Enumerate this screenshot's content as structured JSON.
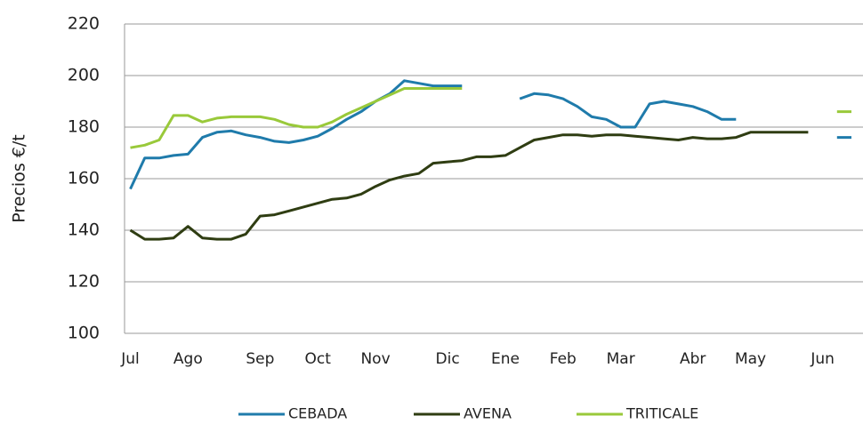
{
  "chart_data": {
    "type": "line",
    "y_label": "Precios €/t",
    "x": [
      0,
      1,
      2,
      3,
      4,
      5,
      6,
      7,
      8,
      9,
      10,
      11,
      12,
      13,
      14,
      15,
      16,
      17,
      18,
      19,
      20,
      21,
      22,
      23,
      24,
      25,
      26,
      27,
      28,
      29,
      30,
      31,
      32,
      33,
      34,
      35,
      36,
      37,
      38,
      39,
      40,
      41,
      42,
      43,
      44,
      45,
      46,
      47,
      48,
      49,
      50
    ],
    "series": [
      {
        "name": "CEBADA",
        "color": "#1f7bab",
        "values": [
          156,
          168,
          168,
          169,
          169.5,
          176,
          178,
          178.5,
          177,
          176,
          174.5,
          174,
          175,
          176.5,
          179.5,
          183,
          186,
          190,
          193,
          198,
          197,
          196,
          196,
          196,
          null,
          null,
          null,
          191,
          193,
          192.5,
          191,
          188,
          184,
          183,
          180,
          180,
          189,
          190,
          189,
          188,
          186,
          183,
          183,
          null,
          null,
          null,
          null,
          null,
          null,
          176,
          176
        ]
      },
      {
        "name": "AVENA",
        "color": "#2f3d12",
        "values": [
          140,
          136.5,
          136.5,
          137,
          141.5,
          137,
          136.5,
          136.5,
          138.5,
          145.5,
          146,
          147.5,
          149,
          150.5,
          152,
          152.5,
          154,
          157,
          159.5,
          161,
          162,
          166,
          166.5,
          167,
          168.5,
          168.5,
          169,
          172,
          175,
          176,
          177,
          177,
          176.5,
          177,
          177,
          176.5,
          176,
          175.5,
          175,
          176,
          175.5,
          175.5,
          176,
          178,
          178,
          178,
          178,
          178,
          null,
          null,
          null
        ]
      },
      {
        "name": "TRITICALE",
        "color": "#99c93a",
        "values": [
          172,
          173,
          175,
          184.5,
          184.5,
          182,
          183.5,
          184,
          184,
          184,
          183,
          181,
          180,
          180,
          182,
          185,
          187.5,
          190,
          192.5,
          195,
          195,
          195,
          195,
          195,
          null,
          null,
          null,
          null,
          null,
          null,
          null,
          null,
          null,
          null,
          null,
          null,
          null,
          null,
          null,
          null,
          null,
          null,
          null,
          null,
          null,
          null,
          null,
          null,
          null,
          186,
          186
        ]
      }
    ],
    "xlim": [
      -0.4,
      50.8
    ],
    "xticks": [
      {
        "value": 0,
        "label": "Jul"
      },
      {
        "value": 4,
        "label": "Ago"
      },
      {
        "value": 9,
        "label": "Sep"
      },
      {
        "value": 13,
        "label": "Oct"
      },
      {
        "value": 17,
        "label": "Nov"
      },
      {
        "value": 22,
        "label": "Dic"
      },
      {
        "value": 26,
        "label": "Ene"
      },
      {
        "value": 30,
        "label": "Feb"
      },
      {
        "value": 34,
        "label": "Mar"
      },
      {
        "value": 39,
        "label": "Abr"
      },
      {
        "value": 43,
        "label": "May"
      },
      {
        "value": 48,
        "label": "Jun"
      }
    ],
    "ylim": [
      100,
      220
    ],
    "yticks": [
      100,
      120,
      140,
      160,
      180,
      200,
      220
    ],
    "grid": true
  }
}
